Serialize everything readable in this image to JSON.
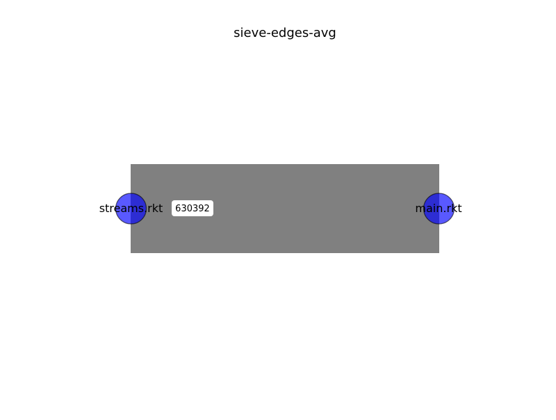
{
  "title": "sieve-edges-avg",
  "nodes": [
    {
      "id": "streams",
      "label": "streams.rkt"
    },
    {
      "id": "main",
      "label": "main.rkt"
    }
  ],
  "edges": [
    {
      "from": "streams",
      "to": "main",
      "label": "630392"
    }
  ],
  "colors": {
    "edge": "#808080",
    "node_fill": "#0000ff",
    "node_stroke": "#000000",
    "label_box": "#ffffff",
    "text": "#000000"
  }
}
